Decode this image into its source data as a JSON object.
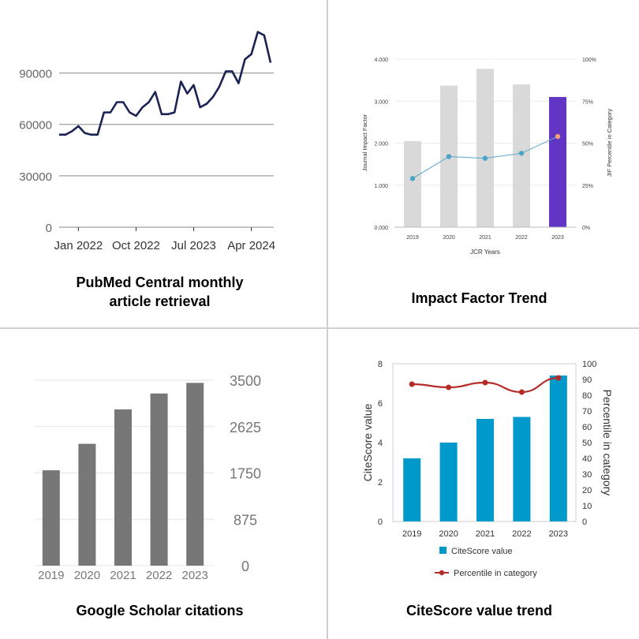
{
  "panels": {
    "pmc": {
      "caption_line1": "PubMed Central monthly",
      "caption_line2": "article retrieval"
    },
    "jif": {
      "caption": "Impact Factor Trend"
    },
    "gs": {
      "caption": "Google Scholar citations"
    },
    "cs": {
      "caption": "CiteScore value trend"
    }
  },
  "chart_data": [
    {
      "id": "pmc",
      "type": "line",
      "title": "PubMed Central monthly article retrieval",
      "x_tick_labels": [
        "Jan 2022",
        "Oct 2022",
        "Jul 2023",
        "Apr 2024"
      ],
      "y_ticks": [
        0,
        30000,
        60000,
        90000
      ],
      "ylim": [
        0,
        105000
      ],
      "grid": true,
      "line_color": "#1a2353",
      "series": [
        {
          "values": [
            54000,
            54000,
            56000,
            59000,
            55000,
            54000,
            54000,
            67000,
            67000,
            73000,
            73000,
            67000,
            65000,
            70000,
            73000,
            79000,
            66000,
            66000,
            67000,
            85000,
            78000,
            83000,
            70000,
            72000,
            76000,
            82000,
            91000,
            91000,
            84000,
            98000,
            101000,
            114000,
            112000,
            96000
          ]
        }
      ]
    },
    {
      "id": "jif",
      "type": "bar",
      "title": "Impact Factor Trend",
      "categories": [
        "2019",
        "2020",
        "2021",
        "2022",
        "2023"
      ],
      "xlabel": "JCR Years",
      "ylabel": "Journal Impact Factor",
      "y2label": "JIF Percentile in Category",
      "y_ticks": [
        "0.000",
        "1.000",
        "2.000",
        "3.000",
        "4.000"
      ],
      "y2_ticks": [
        "0%",
        "25%",
        "50%",
        "75%",
        "100%"
      ],
      "ylim": [
        0,
        4
      ],
      "y2lim": [
        0,
        100
      ],
      "bar_colors": [
        "#d9d9d9",
        "#d9d9d9",
        "#d9d9d9",
        "#d9d9d9",
        "#6236c4"
      ],
      "values": [
        2.05,
        3.37,
        3.77,
        3.4,
        3.1
      ],
      "percentile": [
        29,
        42,
        41,
        44,
        54
      ],
      "point_colors": [
        "#4ba3c7",
        "#4ba3c7",
        "#4ba3c7",
        "#4ba3c7",
        "#f2a07a"
      ]
    },
    {
      "id": "gs",
      "type": "bar",
      "title": "Google Scholar citations",
      "categories": [
        "2019",
        "2020",
        "2021",
        "2022",
        "2023"
      ],
      "values": [
        1800,
        2300,
        2950,
        3250,
        3450
      ],
      "y_ticks": [
        "0",
        "875",
        "1750",
        "2625",
        "3500"
      ],
      "ylim": [
        0,
        3500
      ],
      "bar_color": "#777777"
    },
    {
      "id": "cs",
      "type": "bar",
      "title": "CiteScore value trend",
      "categories": [
        "2019",
        "2020",
        "2021",
        "2022",
        "2023"
      ],
      "ylabel": "CiteScore value",
      "y2label": "Percentile in category",
      "y_ticks": [
        "0",
        "2",
        "4",
        "6",
        "8"
      ],
      "y2_ticks": [
        "0",
        "10",
        "20",
        "30",
        "40",
        "50",
        "60",
        "70",
        "80",
        "90",
        "100"
      ],
      "ylim": [
        0,
        8
      ],
      "y2lim": [
        0,
        100
      ],
      "bar_color": "#0099cc",
      "line_color": "#b52b27",
      "series": [
        {
          "name": "CiteScore value",
          "values": [
            3.2,
            4.0,
            5.2,
            5.3,
            7.4
          ]
        },
        {
          "name": "Percentile in category",
          "values": [
            87,
            85,
            88,
            82,
            91
          ]
        }
      ]
    }
  ]
}
